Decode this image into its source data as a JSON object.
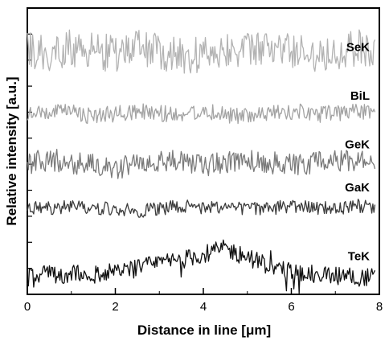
{
  "chart_data": {
    "type": "line",
    "title": "",
    "xlabel": "Distance in line [μm]",
    "ylabel": "Relative intensity [a.u.]",
    "xlim": [
      0,
      8
    ],
    "ylim": [
      0,
      100
    ],
    "x_ticks": [
      "0",
      "2",
      "4",
      "6",
      "8"
    ],
    "y_ticks_labeled": false,
    "grid": false,
    "x_samples": [
      0,
      0.5,
      1,
      1.5,
      2,
      2.5,
      3,
      3.5,
      4,
      4.5,
      5,
      5.5,
      6,
      6.5,
      7,
      7.5,
      7.9
    ],
    "series": [
      {
        "name": "SeK",
        "color": "#b3b3b3",
        "values": [
          85,
          84,
          86,
          85,
          84,
          86,
          85,
          83,
          84,
          86,
          85,
          86,
          85,
          84,
          85,
          86,
          85
        ]
      },
      {
        "name": "BiL",
        "color": "#a3a3a3",
        "values": [
          63,
          63,
          64,
          62,
          63,
          64,
          63,
          63,
          64,
          63,
          62,
          63,
          64,
          63,
          63,
          64,
          63
        ]
      },
      {
        "name": "GeK",
        "color": "#7a7a7a",
        "values": [
          46,
          47,
          46,
          45,
          44,
          46,
          47,
          46,
          45,
          46,
          47,
          46,
          45,
          46,
          47,
          46,
          47
        ]
      },
      {
        "name": "GaK",
        "color": "#3c3c3c",
        "values": [
          30,
          30,
          31,
          30,
          30,
          29,
          30,
          31,
          30,
          31,
          30,
          30,
          31,
          30,
          30,
          31,
          30
        ]
      },
      {
        "name": "TeK",
        "color": "#111111",
        "values": [
          6,
          7,
          7,
          7,
          8,
          9,
          11,
          12,
          14,
          16,
          13,
          10,
          8,
          7,
          7,
          6,
          6
        ]
      }
    ]
  }
}
